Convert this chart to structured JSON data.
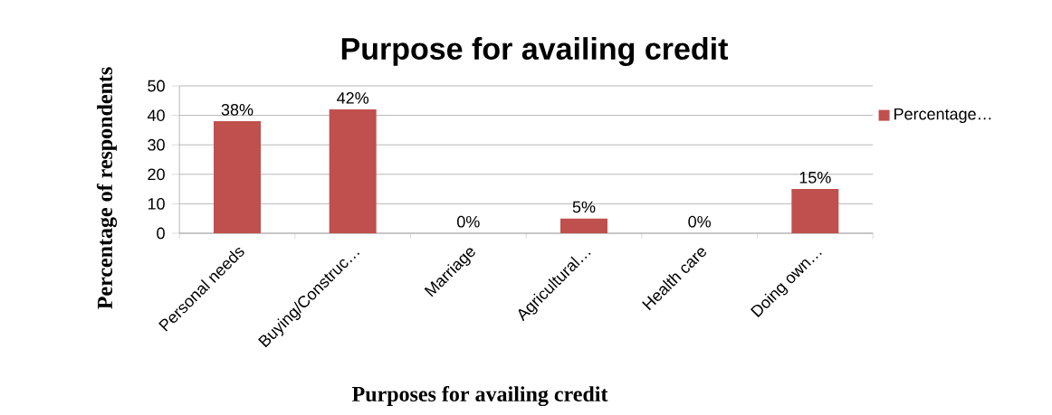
{
  "chart_data": {
    "type": "bar",
    "title": "Purpose for availing credit",
    "xlabel": "Purposes for availing credit",
    "ylabel": "Percentage of respondents",
    "categories": [
      "Personal needs",
      "Buying/Construc…",
      "Marriage",
      "Agricultural…",
      "Health care",
      "Doing own…"
    ],
    "series": [
      {
        "name": "Percentage…",
        "color": "#c0504d",
        "values": [
          38,
          42,
          0,
          5,
          0,
          15
        ],
        "value_labels": [
          "38%",
          "42%",
          "0%",
          "5%",
          "0%",
          "15%"
        ]
      }
    ],
    "ylim": [
      0,
      50
    ],
    "yticks": [
      0,
      10,
      20,
      30,
      40,
      50
    ],
    "grid": "y",
    "legend": "right"
  }
}
